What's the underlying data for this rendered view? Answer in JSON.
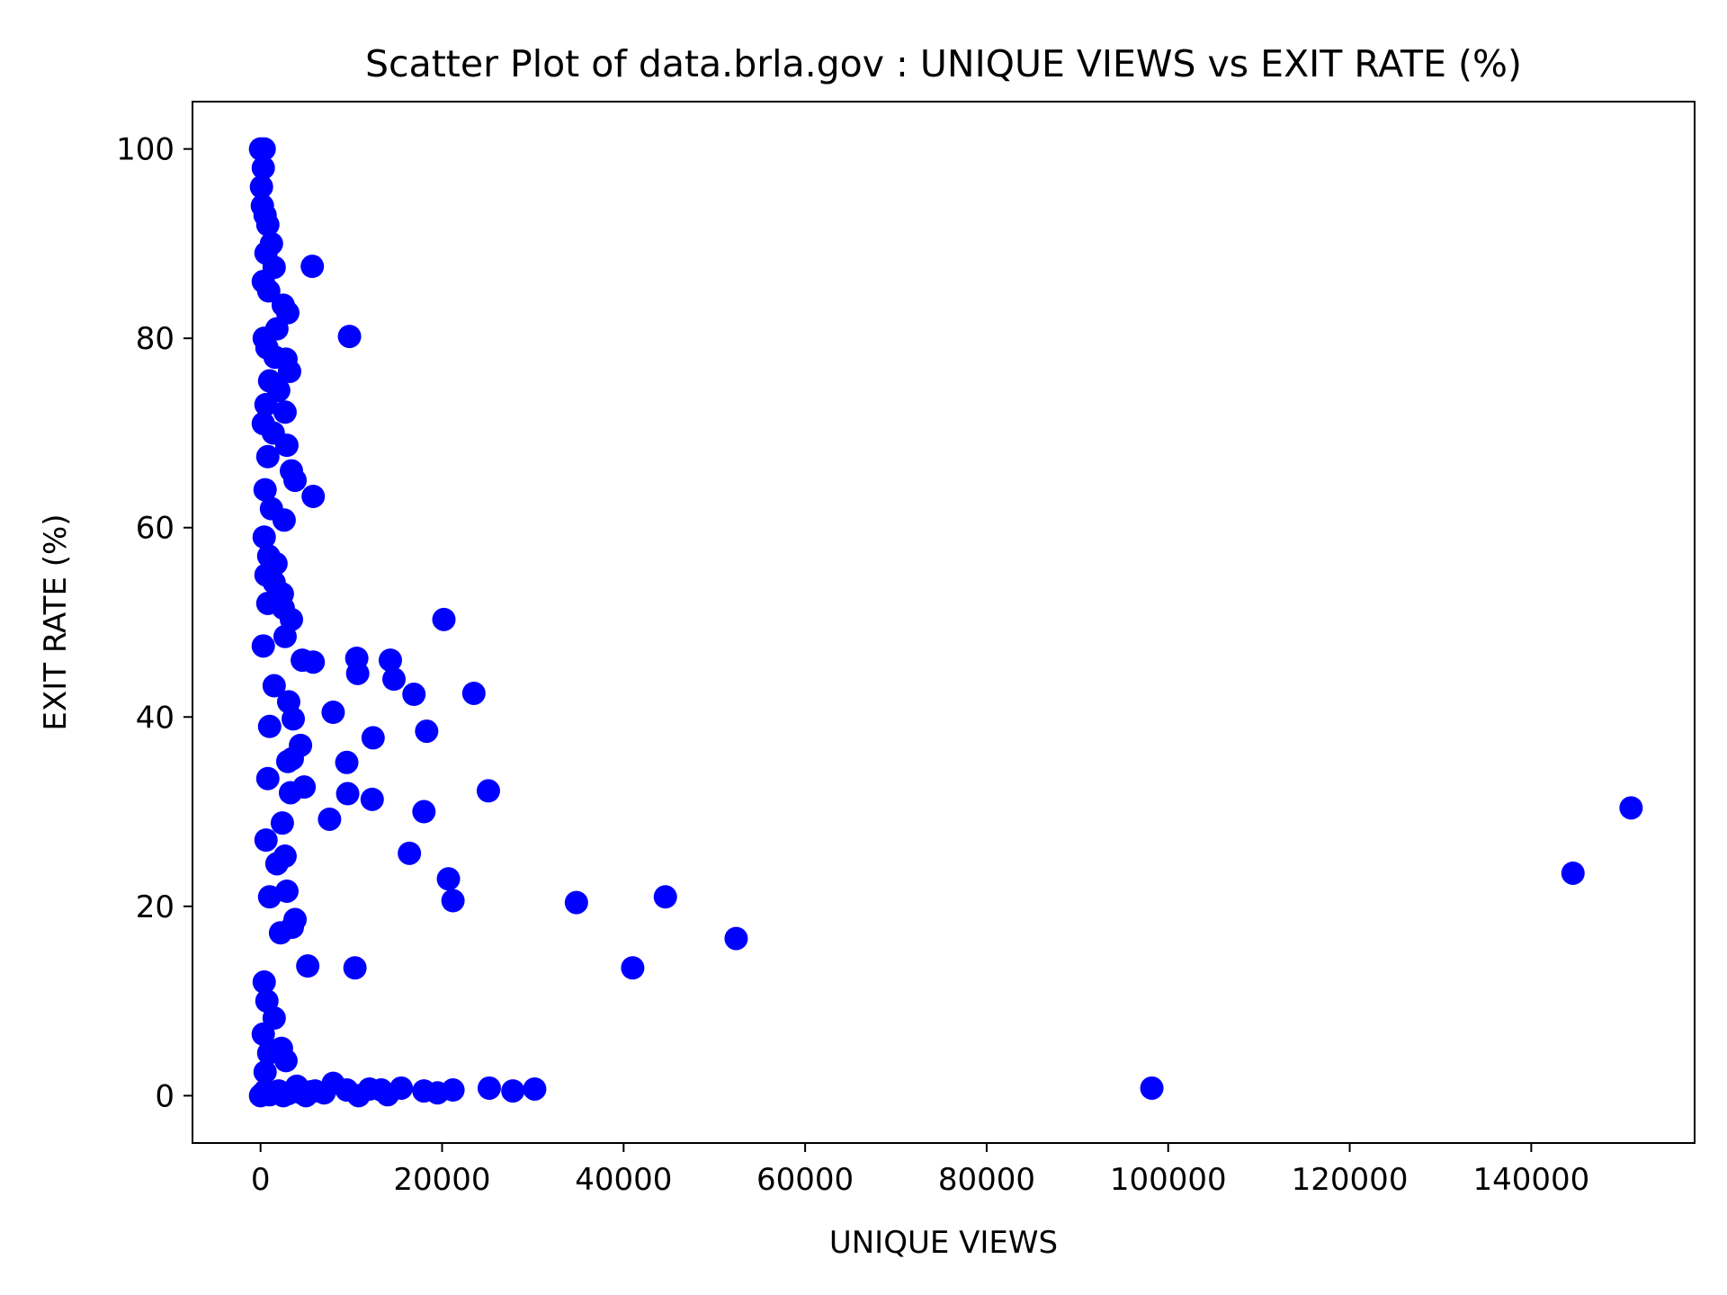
{
  "chart_data": {
    "type": "scatter",
    "title": "Scatter Plot of data.brla.gov : UNIQUE VIEWS vs EXIT RATE (%)",
    "xlabel": "UNIQUE VIEWS",
    "ylabel": "EXIT RATE (%)",
    "xlim": [
      -7500,
      158000
    ],
    "ylim": [
      -5,
      105
    ],
    "xticks": [
      0,
      20000,
      40000,
      60000,
      80000,
      100000,
      120000,
      140000
    ],
    "xtick_labels": [
      "0",
      "20000",
      "40000",
      "60000",
      "80000",
      "100000",
      "120000",
      "140000"
    ],
    "yticks": [
      0,
      20,
      40,
      60,
      80,
      100
    ],
    "ytick_labels": [
      "0",
      "20",
      "40",
      "60",
      "80",
      "100"
    ],
    "grid": false,
    "marker_color": "#0000ff",
    "series": [
      {
        "points": [
          [
            0,
            100
          ],
          [
            400,
            100
          ],
          [
            300,
            98
          ],
          [
            100,
            96
          ],
          [
            200,
            94
          ],
          [
            500,
            93
          ],
          [
            800,
            92
          ],
          [
            1200,
            90
          ],
          [
            600,
            89
          ],
          [
            1500,
            87.5
          ],
          [
            300,
            86
          ],
          [
            900,
            85
          ],
          [
            5700,
            87.6
          ],
          [
            9800,
            80.2
          ],
          [
            2500,
            83.5
          ],
          [
            3000,
            82.7
          ],
          [
            1800,
            81
          ],
          [
            400,
            80
          ],
          [
            700,
            79
          ],
          [
            1600,
            78
          ],
          [
            2800,
            77.8
          ],
          [
            3200,
            76.5
          ],
          [
            1000,
            75.5
          ],
          [
            2000,
            74.5
          ],
          [
            600,
            73
          ],
          [
            2700,
            72.2
          ],
          [
            300,
            71
          ],
          [
            1400,
            70
          ],
          [
            2900,
            68.7
          ],
          [
            800,
            67.5
          ],
          [
            3400,
            66
          ],
          [
            3800,
            65
          ],
          [
            500,
            64
          ],
          [
            5800,
            63.3
          ],
          [
            1200,
            62
          ],
          [
            2600,
            60.8
          ],
          [
            400,
            59
          ],
          [
            900,
            57
          ],
          [
            1700,
            56.2
          ],
          [
            600,
            55
          ],
          [
            1500,
            54.2
          ],
          [
            2400,
            53
          ],
          [
            800,
            52
          ],
          [
            2500,
            51.5
          ],
          [
            3400,
            50.3
          ],
          [
            20200,
            50.3
          ],
          [
            2700,
            48.5
          ],
          [
            300,
            47.5
          ],
          [
            4600,
            46
          ],
          [
            5800,
            45.8
          ],
          [
            10600,
            46.2
          ],
          [
            10700,
            44.6
          ],
          [
            14300,
            46
          ],
          [
            14700,
            44
          ],
          [
            16900,
            42.4
          ],
          [
            23500,
            42.5
          ],
          [
            1500,
            43.3
          ],
          [
            3100,
            41.6
          ],
          [
            8000,
            40.5
          ],
          [
            3600,
            39.8
          ],
          [
            1000,
            39
          ],
          [
            18300,
            38.5
          ],
          [
            12400,
            37.8
          ],
          [
            4400,
            37
          ],
          [
            3500,
            35.6
          ],
          [
            3000,
            35.3
          ],
          [
            9500,
            35.2
          ],
          [
            800,
            33.5
          ],
          [
            4800,
            32.6
          ],
          [
            3300,
            32
          ],
          [
            9600,
            31.9
          ],
          [
            12300,
            31.3
          ],
          [
            25100,
            32.2
          ],
          [
            18000,
            30
          ],
          [
            7600,
            29.2
          ],
          [
            2400,
            28.8
          ],
          [
            600,
            27
          ],
          [
            16400,
            25.6
          ],
          [
            2700,
            25.3
          ],
          [
            1800,
            24.5
          ],
          [
            20700,
            22.9
          ],
          [
            2900,
            21.6
          ],
          [
            1000,
            21
          ],
          [
            21200,
            20.6
          ],
          [
            34800,
            20.4
          ],
          [
            44600,
            21
          ],
          [
            3800,
            18.6
          ],
          [
            3500,
            17.8
          ],
          [
            2200,
            17.2
          ],
          [
            52400,
            16.6
          ],
          [
            41000,
            13.5
          ],
          [
            5200,
            13.7
          ],
          [
            10400,
            13.5
          ],
          [
            400,
            12
          ],
          [
            700,
            10
          ],
          [
            1500,
            8.2
          ],
          [
            300,
            6.5
          ],
          [
            2300,
            5
          ],
          [
            900,
            4.5
          ],
          [
            2800,
            3.7
          ],
          [
            500,
            2.5
          ],
          [
            0,
            0
          ],
          [
            200,
            0.2
          ],
          [
            500,
            0.5
          ],
          [
            1000,
            0.1
          ],
          [
            1500,
            0.3
          ],
          [
            2000,
            0.5
          ],
          [
            2500,
            0
          ],
          [
            3000,
            0.2
          ],
          [
            3500,
            0.4
          ],
          [
            4000,
            1
          ],
          [
            4500,
            0.3
          ],
          [
            5000,
            0
          ],
          [
            5500,
            0.4
          ],
          [
            6000,
            0.5
          ],
          [
            7000,
            0.3
          ],
          [
            8000,
            1.3
          ],
          [
            9500,
            0.6
          ],
          [
            10800,
            0
          ],
          [
            12000,
            0.7
          ],
          [
            13300,
            0.6
          ],
          [
            14000,
            0.1
          ],
          [
            15500,
            0.8
          ],
          [
            18000,
            0.5
          ],
          [
            19500,
            0.3
          ],
          [
            21200,
            0.6
          ],
          [
            25200,
            0.8
          ],
          [
            27800,
            0.5
          ],
          [
            30200,
            0.7
          ],
          [
            98200,
            0.8
          ],
          [
            144600,
            23.5
          ],
          [
            151000,
            30.4
          ]
        ]
      }
    ]
  }
}
